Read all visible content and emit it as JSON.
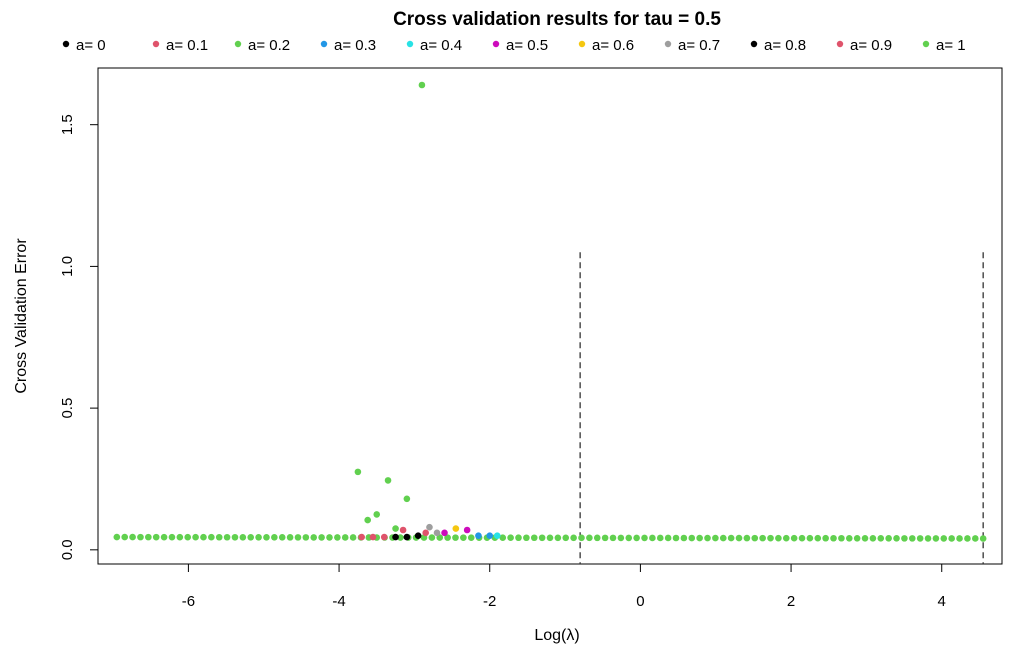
{
  "chart_data": {
    "type": "scatter",
    "title": "Cross validation results for  tau  =  0.5",
    "xlabel": "Log(λ)",
    "ylabel": "Cross Validation Error",
    "xlim": [
      -7.2,
      4.8
    ],
    "ylim": [
      -0.05,
      1.7
    ],
    "xticks": [
      -6,
      -4,
      -2,
      0,
      2,
      4
    ],
    "yticks": [
      0.0,
      0.5,
      1.0,
      1.5
    ],
    "xtick_labels": [
      "-6",
      "-4",
      "-2",
      "0",
      "2",
      "4"
    ],
    "ytick_labels": [
      "0.0",
      "0.5",
      "1.0",
      "1.5"
    ],
    "grid": false,
    "legend_position": "top",
    "vlines": [
      -0.8,
      4.55
    ],
    "vline_ymax": 1.05,
    "series": [
      {
        "name": "a= 0",
        "color": "#000000",
        "points": [
          [
            -3.25,
            0.045
          ],
          [
            -3.1,
            0.045
          ],
          [
            -2.95,
            0.05
          ]
        ]
      },
      {
        "name": "a= 0.1",
        "color": "#DF536B",
        "points": [
          [
            -3.7,
            0.045
          ],
          [
            -3.55,
            0.045
          ],
          [
            -3.4,
            0.045
          ],
          [
            -3.15,
            0.07
          ],
          [
            -2.85,
            0.06
          ]
        ]
      },
      {
        "name": "a= 0.2",
        "color": "#61D04F",
        "points": [
          [
            -2.9,
            1.64
          ],
          [
            -3.75,
            0.275
          ],
          [
            -3.35,
            0.245
          ],
          [
            -3.1,
            0.18
          ],
          [
            -3.5,
            0.125
          ],
          [
            -3.62,
            0.105
          ],
          [
            -3.25,
            0.075
          ]
        ]
      },
      {
        "name": "a= 0.3",
        "color": "#2297E6",
        "points": [
          [
            -2.15,
            0.05
          ],
          [
            -2.0,
            0.05
          ]
        ]
      },
      {
        "name": "a= 0.4",
        "color": "#28E2E5",
        "points": [
          [
            -1.9,
            0.05
          ]
        ]
      },
      {
        "name": "a= 0.5",
        "color": "#CD0BBC",
        "points": [
          [
            -2.3,
            0.07
          ],
          [
            -2.6,
            0.06
          ]
        ]
      },
      {
        "name": "a= 0.6",
        "color": "#F5C710",
        "points": [
          [
            -2.45,
            0.075
          ]
        ]
      },
      {
        "name": "a= 0.7",
        "color": "#9E9E9E",
        "points": [
          [
            -2.8,
            0.08
          ],
          [
            -2.7,
            0.06
          ]
        ]
      },
      {
        "name": "a= 0.8",
        "color": "#000000",
        "points": []
      },
      {
        "name": "a= 0.9",
        "color": "#DF536B",
        "points": []
      },
      {
        "name": "a= 1",
        "color": "#61D04F",
        "points": []
      }
    ],
    "baseline": {
      "series_index": 2,
      "x_from": -6.95,
      "x_to": 4.55,
      "y_from": 0.045,
      "y_to": 0.04,
      "n_points": 111
    }
  }
}
